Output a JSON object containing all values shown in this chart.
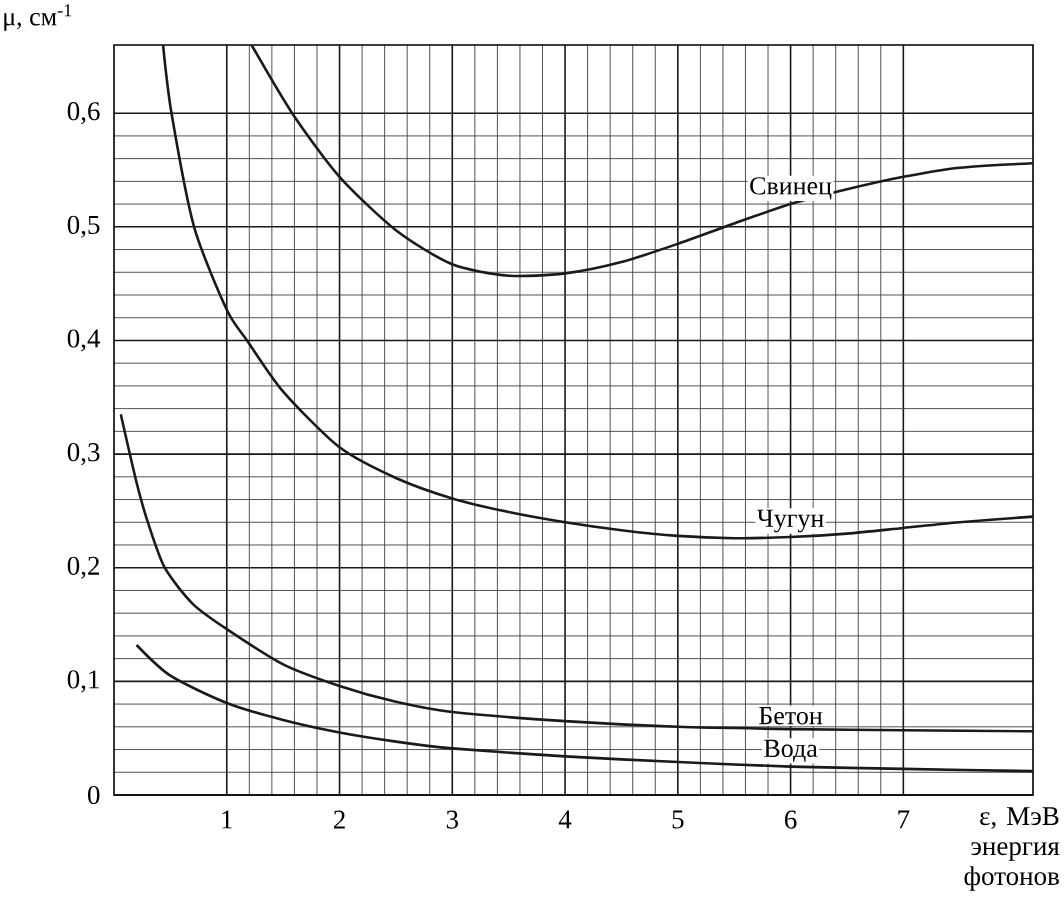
{
  "chart_data": {
    "type": "line",
    "xlabel": "ε, МэВ энергия фотонов",
    "ylabel": "μ, см$^{-1}$",
    "xlim": [
      0,
      8.15
    ],
    "ylim": [
      0,
      0.66
    ],
    "xticks": [
      1,
      2,
      3,
      4,
      5,
      6,
      7
    ],
    "yticks": [
      {
        "value": 0,
        "label": "0"
      },
      {
        "value": 0.1,
        "label": "0,1"
      },
      {
        "value": 0.2,
        "label": "0,2"
      },
      {
        "value": 0.3,
        "label": "0,3"
      },
      {
        "value": 0.4,
        "label": "0,4"
      },
      {
        "value": 0.5,
        "label": "0,5"
      },
      {
        "value": 0.6,
        "label": "0,6"
      }
    ],
    "grid": true,
    "marker": "none",
    "line_style": "solid",
    "series": [
      {
        "name": "Свинец",
        "color": "#1a1a1a",
        "x": [
          1.22,
          1.58,
          2,
          2.5,
          3,
          3.5,
          4,
          4.5,
          5,
          5.5,
          6,
          6.5,
          7,
          7.5,
          8.15
        ],
        "values": [
          0.66,
          0.6,
          0.544,
          0.497,
          0.467,
          0.457,
          0.459,
          0.469,
          0.485,
          0.503,
          0.52,
          0.533,
          0.544,
          0.552,
          0.556
        ]
      },
      {
        "name": "Чугун",
        "color": "#1a1a1a",
        "x": [
          0.435,
          0.51,
          0.71,
          1,
          1.18,
          1.5,
          2,
          2.5,
          3,
          3.5,
          4,
          4.5,
          5,
          5.5,
          6,
          6.5,
          7,
          7.5,
          8.15
        ],
        "values": [
          0.66,
          0.6,
          0.5,
          0.427,
          0.4,
          0.355,
          0.306,
          0.279,
          0.261,
          0.249,
          0.24,
          0.233,
          0.228,
          0.226,
          0.227,
          0.23,
          0.235,
          0.24,
          0.245
        ]
      },
      {
        "name": "Бетон",
        "color": "#1a1a1a",
        "x": [
          0.06,
          0.2,
          0.3,
          0.45,
          0.7,
          1,
          1.5,
          2,
          2.5,
          3,
          4,
          5,
          6,
          7,
          8.15
        ],
        "values": [
          0.335,
          0.275,
          0.24,
          0.2,
          0.168,
          0.146,
          0.115,
          0.096,
          0.082,
          0.073,
          0.065,
          0.06,
          0.058,
          0.057,
          0.056
        ]
      },
      {
        "name": "Вода",
        "color": "#1a1a1a",
        "x": [
          0.2,
          0.5,
          1,
          1.5,
          2,
          2.5,
          3,
          4,
          5,
          6,
          7,
          8.15
        ],
        "values": [
          0.132,
          0.105,
          0.081,
          0.066,
          0.055,
          0.047,
          0.041,
          0.034,
          0.029,
          0.025,
          0.023,
          0.021
        ]
      }
    ]
  }
}
